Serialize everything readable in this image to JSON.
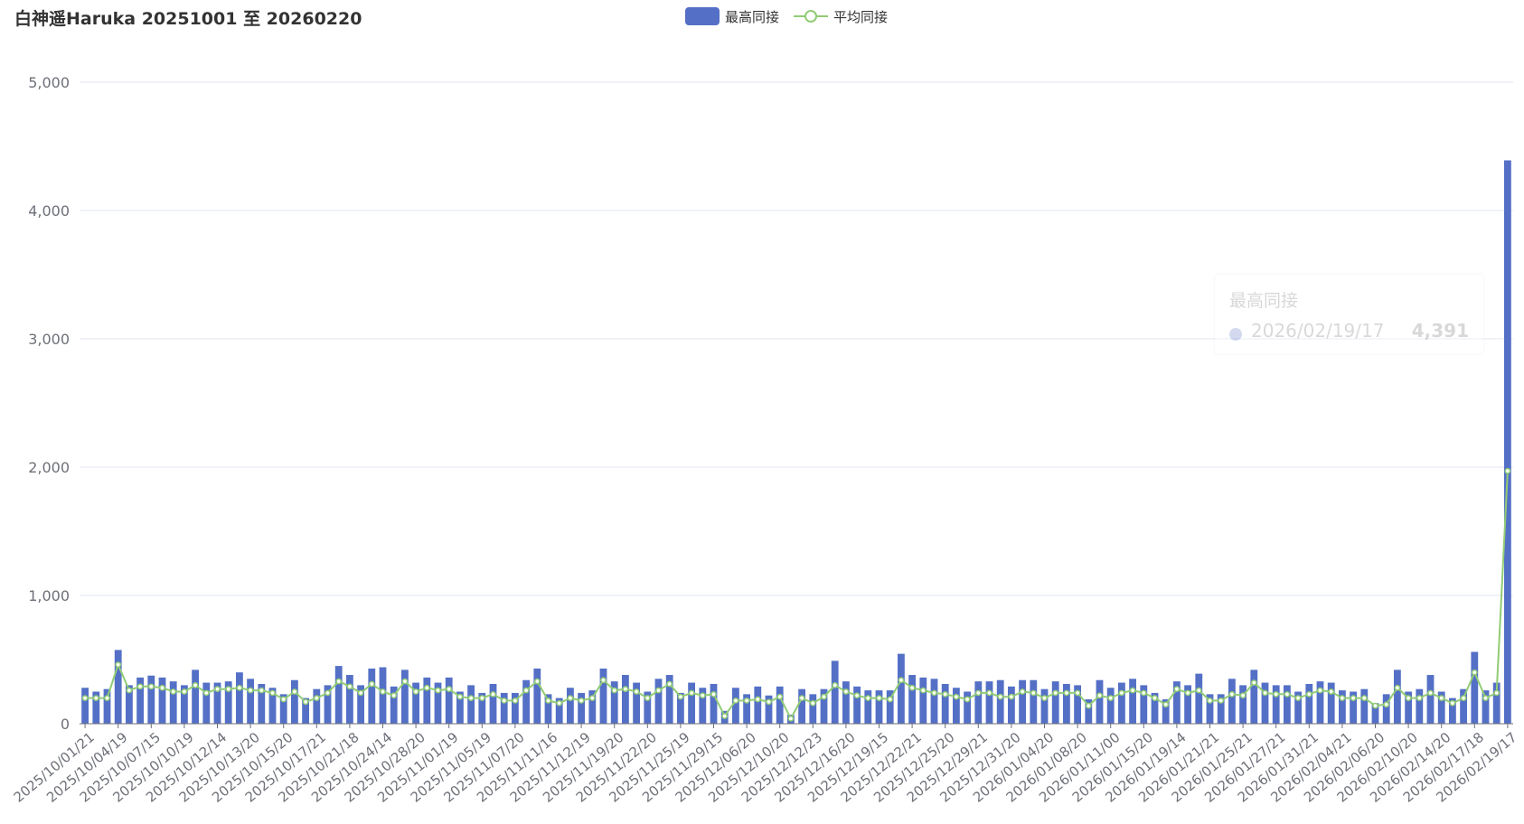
{
  "chart_data": {
    "type": "bar",
    "title": "白神遥Haruka 20251001 至 20260220",
    "legend": {
      "placement": "top-center",
      "items": [
        "最高同接",
        "平均同接"
      ]
    },
    "colors": {
      "bar": "#5470c6",
      "line": "#91cc75"
    },
    "ylim": [
      0,
      5000
    ],
    "yticks": [
      "0",
      "1,000",
      "2,000",
      "3,000",
      "4,000",
      "5,000"
    ],
    "grid": true,
    "x_tick_labels": [
      "2025/10/01/21",
      "2025/10/04/19",
      "2025/10/07/15",
      "2025/10/10/19",
      "2025/10/12/14",
      "2025/10/13/20",
      "2025/10/15/20",
      "2025/10/17/21",
      "2025/10/21/18",
      "2025/10/24/14",
      "2025/10/28/20",
      "2025/11/01/19",
      "2025/11/05/19",
      "2025/11/07/20",
      "2025/11/11/16",
      "2025/11/12/19",
      "2025/11/19/20",
      "2025/11/22/20",
      "2025/11/25/19",
      "2025/11/29/15",
      "2025/12/06/20",
      "2025/12/10/20",
      "2025/12/12/23",
      "2025/12/16/20",
      "2025/12/19/15",
      "2025/12/22/21",
      "2025/12/25/20",
      "2025/12/29/21",
      "2025/12/31/20",
      "2026/01/04/20",
      "2026/01/08/20",
      "2026/01/11/00",
      "2026/01/15/20",
      "2026/01/19/14",
      "2026/01/21/21",
      "2026/01/25/21",
      "2026/01/27/21",
      "2026/01/31/21",
      "2026/02/04/21",
      "2026/02/06/20",
      "2026/02/10/20",
      "2026/02/14/20",
      "2026/02/17/18",
      "2026/02/19/17"
    ],
    "series": [
      {
        "name": "最高同接",
        "type": "bar",
        "values": [
          280,
          250,
          270,
          575,
          300,
          360,
          375,
          360,
          330,
          300,
          420,
          320,
          320,
          330,
          400,
          350,
          310,
          280,
          230,
          340,
          200,
          270,
          300,
          450,
          380,
          300,
          430,
          440,
          290,
          420,
          320,
          360,
          320,
          360,
          250,
          300,
          240,
          310,
          240,
          240,
          340,
          430,
          230,
          200,
          280,
          240,
          260,
          430,
          330,
          380,
          320,
          250,
          350,
          380,
          240,
          320,
          280,
          310,
          100,
          280,
          230,
          290,
          220,
          290,
          70,
          270,
          230,
          270,
          490,
          330,
          290,
          260,
          260,
          260,
          545,
          380,
          360,
          350,
          310,
          280,
          250,
          330,
          330,
          340,
          290,
          340,
          340,
          270,
          330,
          310,
          300,
          190,
          340,
          280,
          320,
          350,
          300,
          240,
          190,
          330,
          300,
          390,
          230,
          230,
          350,
          300,
          420,
          320,
          300,
          300,
          250,
          310,
          330,
          320,
          260,
          250,
          270,
          160,
          230,
          420,
          250,
          270,
          380,
          250,
          200,
          270,
          560,
          260,
          320,
          4391
        ]
      },
      {
        "name": "平均同接",
        "type": "line",
        "values": [
          200,
          200,
          200,
          460,
          260,
          290,
          290,
          280,
          250,
          250,
          300,
          240,
          270,
          270,
          280,
          260,
          260,
          240,
          190,
          250,
          170,
          200,
          240,
          330,
          290,
          240,
          310,
          250,
          220,
          330,
          250,
          280,
          260,
          270,
          210,
          200,
          200,
          230,
          180,
          180,
          260,
          330,
          180,
          160,
          200,
          180,
          200,
          340,
          260,
          270,
          250,
          200,
          260,
          310,
          210,
          240,
          220,
          230,
          60,
          180,
          180,
          190,
          170,
          210,
          40,
          200,
          160,
          210,
          300,
          250,
          220,
          200,
          200,
          190,
          340,
          280,
          260,
          240,
          230,
          210,
          190,
          240,
          240,
          210,
          210,
          250,
          240,
          200,
          240,
          240,
          240,
          140,
          220,
          200,
          240,
          260,
          240,
          200,
          150,
          270,
          240,
          260,
          180,
          180,
          230,
          220,
          320,
          240,
          230,
          230,
          200,
          230,
          260,
          250,
          200,
          200,
          200,
          140,
          150,
          280,
          200,
          200,
          240,
          200,
          160,
          200,
          400,
          200,
          240,
          1970
        ]
      }
    ]
  },
  "tooltip": {
    "title": "最高同接",
    "name": "2026/02/19/17",
    "value": "4,391"
  }
}
